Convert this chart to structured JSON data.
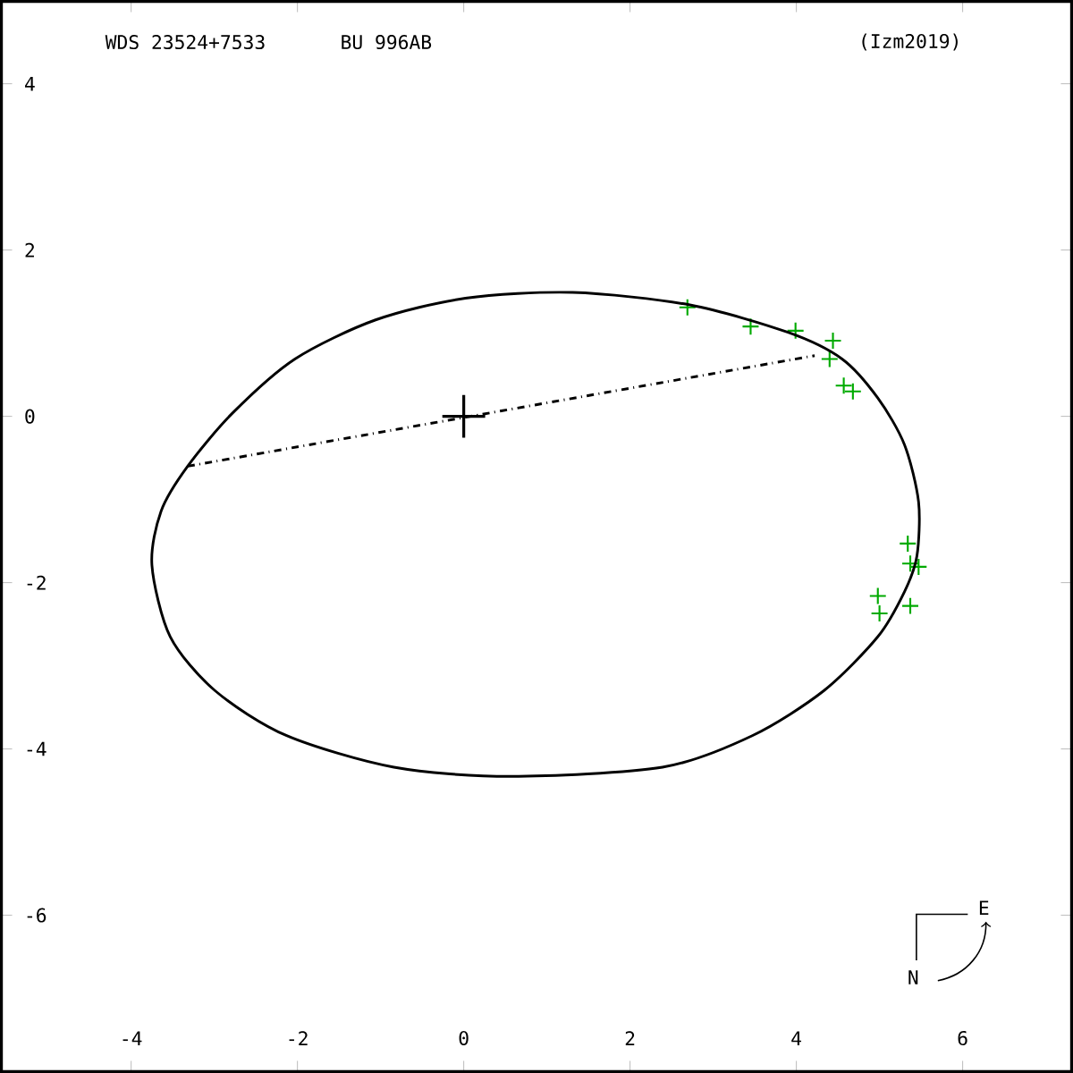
{
  "chart_data": {
    "type": "line",
    "title": "BU  996AB",
    "annotations": [
      "WDS 23524+7533",
      "(Izm2019)",
      "N",
      "E"
    ],
    "xlim": [
      -5.56,
      7.31
    ],
    "ylim": [
      -7.88,
      4.99
    ],
    "xticks": [
      -4,
      -2,
      0,
      2,
      4,
      6
    ],
    "yticks": [
      -6,
      -4,
      -2,
      0,
      2,
      4
    ],
    "grid": false,
    "series": [
      {
        "color": "#000000",
        "line_style": "dashed",
        "marker": "none",
        "x": [
          -3.32,
          4.22
        ],
        "values": [
          -0.6,
          0.73
        ]
      },
      {
        "type": "scatter",
        "color": "#00aa00",
        "marker": "cross",
        "x": [
          2.69,
          3.45,
          3.99,
          4.44,
          4.4,
          4.57,
          4.68,
          5.34,
          5.37,
          5.47,
          4.98,
          5.37,
          5.0
        ],
        "values": [
          1.31,
          1.08,
          1.03,
          0.91,
          0.69,
          0.37,
          0.3,
          -1.53,
          -1.77,
          -1.81,
          -2.16,
          -2.28,
          -2.37
        ]
      }
    ]
  }
}
